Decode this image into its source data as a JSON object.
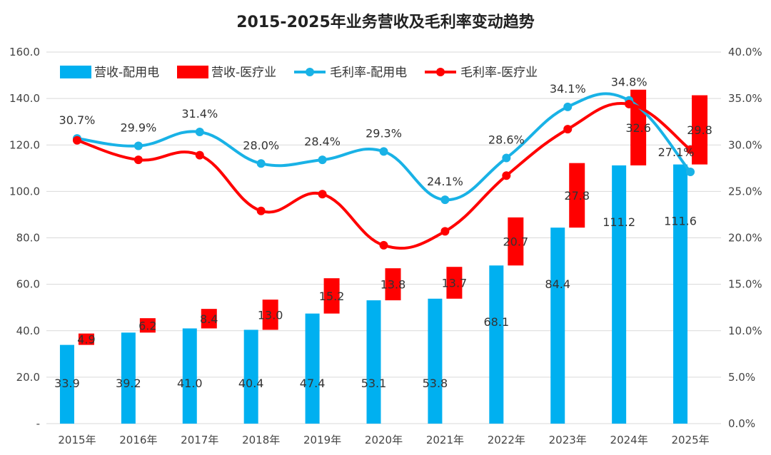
{
  "chart_data": {
    "type": "bar+line",
    "title": "2015-2025年业务营收及毛利率变动趋势",
    "categories": [
      "2015年",
      "2016年",
      "2017年",
      "2018年",
      "2019年",
      "2020年",
      "2021年",
      "2022年",
      "2023年",
      "2024年",
      "2025年"
    ],
    "left_axis": {
      "min": 0,
      "max": 160,
      "ticks": [
        "-",
        "20.0",
        "40.0",
        "60.0",
        "80.0",
        "100.0",
        "120.0",
        "140.0",
        "160.0"
      ]
    },
    "right_axis": {
      "min": 0,
      "max": 40,
      "ticks": [
        "0.0%",
        "5.0%",
        "10.0%",
        "15.0%",
        "20.0%",
        "25.0%",
        "30.0%",
        "35.0%",
        "40.0%"
      ]
    },
    "series": [
      {
        "name": "营收-配用电",
        "type": "bar",
        "axis": "left",
        "color": "#00b0f0",
        "values": [
          33.9,
          39.2,
          41.0,
          40.4,
          47.4,
          53.1,
          53.8,
          68.1,
          84.4,
          111.2,
          111.6
        ],
        "labels": [
          "33.9",
          "39.2",
          "41.0",
          "40.4",
          "47.4",
          "53.1",
          "53.8",
          "68.1",
          "84.4",
          "111.2",
          "111.6"
        ]
      },
      {
        "name": "营收-医疗业",
        "type": "stacked-bar",
        "axis": "left",
        "color": "#ff0000",
        "values": [
          4.9,
          6.2,
          8.4,
          13.0,
          15.2,
          13.8,
          13.7,
          20.7,
          27.8,
          32.6,
          29.8
        ],
        "labels": [
          "4.9",
          "6.2",
          "8.4",
          "13.0",
          "15.2",
          "13.8",
          "13.7",
          "20.7",
          "27.8",
          "32.6",
          "29.8"
        ]
      },
      {
        "name": "毛利率-配用电",
        "type": "line",
        "axis": "right",
        "color": "#19b2e6",
        "values": [
          30.7,
          29.9,
          31.4,
          28.0,
          28.4,
          29.3,
          24.1,
          28.6,
          34.1,
          34.8,
          27.1
        ],
        "labels": [
          "30.7%",
          "29.9%",
          "31.4%",
          "28.0%",
          "28.4%",
          "29.3%",
          "24.1%",
          "28.6%",
          "34.1%",
          "34.8%",
          "27.1%"
        ]
      },
      {
        "name": "毛利率-医疗业",
        "type": "line",
        "axis": "right",
        "color": "#ff0000",
        "values": [
          30.5,
          28.4,
          28.9,
          22.9,
          24.7,
          19.2,
          20.7,
          26.7,
          31.7,
          34.4,
          29.5
        ]
      }
    ],
    "grid": true,
    "legend_position": "top-left"
  }
}
